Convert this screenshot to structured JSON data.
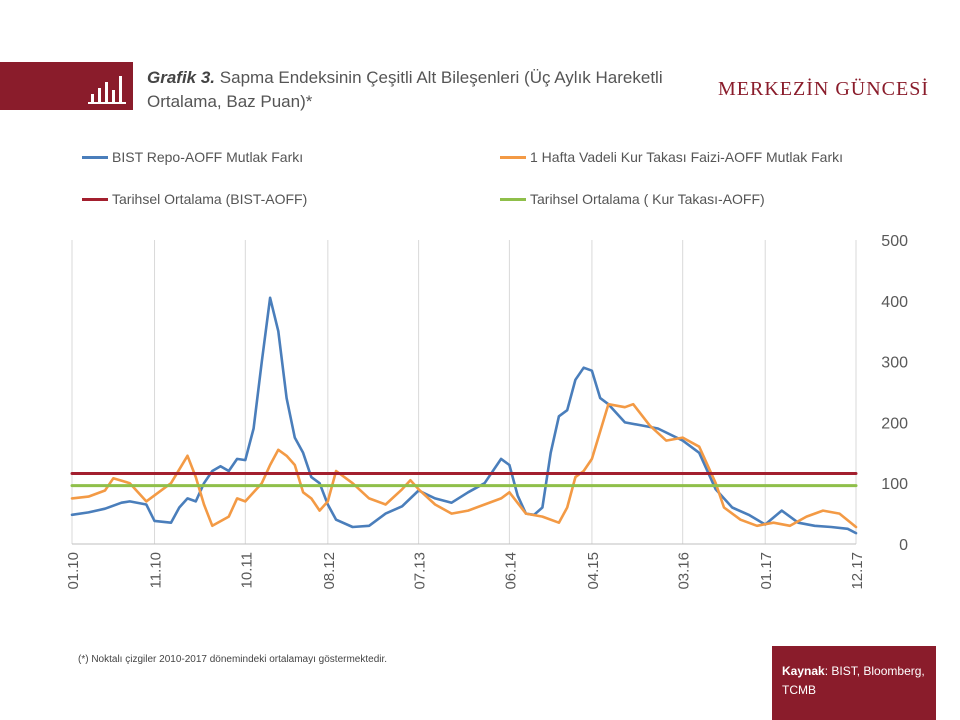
{
  "header": {
    "title_bold": "Grafik 3.",
    "title_text": "Sapma Endeksinin Çeşitli Alt Bileşenleri (Üç Aylık Hareketli Ortalama, Baz Puan)*",
    "brand": "MERKEZİN GÜNCESİ",
    "icon": "bar-chart-icon"
  },
  "footer": {
    "note": "(*) Noktalı çizgiler 2010-2017 dönemindeki ortalamayı göstermektedir.",
    "source_label": "Kaynak",
    "source_text": ": BIST, Bloomberg, TCMB"
  },
  "colors": {
    "brand": "#8a1c2b",
    "series1": "#4a7ebb",
    "series2": "#f39a45",
    "series3": "#a31f2e",
    "series4": "#8fbf4a"
  },
  "chart_data": {
    "type": "line",
    "title": "",
    "xlabel": "",
    "ylabel": "",
    "ylim": [
      0,
      500
    ],
    "yticks": [
      0,
      100,
      200,
      300,
      400,
      500
    ],
    "y_axis_side": "right",
    "xlim": [
      "2010-01",
      "2017-12"
    ],
    "xticks": [
      "01.10",
      "11.10",
      "10.11",
      "08.12",
      "07.13",
      "06.14",
      "04.15",
      "03.16",
      "01.17",
      "12.17"
    ],
    "xtick_dates": [
      "2010-01",
      "2010-11",
      "2011-10",
      "2012-08",
      "2013-07",
      "2014-06",
      "2015-04",
      "2016-03",
      "2017-01",
      "2017-12"
    ],
    "grid": "vertical",
    "legend_position": "top",
    "series": [
      {
        "name": "BIST Repo-AOFF Mutlak Farkı",
        "color": "#4a7ebb",
        "style": "line",
        "x": [
          "2010-01",
          "2010-03",
          "2010-05",
          "2010-07",
          "2010-08",
          "2010-10",
          "2010-11",
          "2011-01",
          "2011-02",
          "2011-03",
          "2011-04",
          "2011-05",
          "2011-06",
          "2011-07",
          "2011-08",
          "2011-09",
          "2011-10",
          "2011-11",
          "2011-12",
          "2012-01",
          "2012-02",
          "2012-03",
          "2012-04",
          "2012-05",
          "2012-06",
          "2012-07",
          "2012-08",
          "2012-09",
          "2012-11",
          "2013-01",
          "2013-03",
          "2013-05",
          "2013-07",
          "2013-09",
          "2013-11",
          "2014-01",
          "2014-03",
          "2014-05",
          "2014-06",
          "2014-07",
          "2014-08",
          "2014-09",
          "2014-10",
          "2014-11",
          "2014-12",
          "2015-01",
          "2015-02",
          "2015-03",
          "2015-04",
          "2015-05",
          "2015-06",
          "2015-08",
          "2015-10",
          "2015-12",
          "2016-03",
          "2016-05",
          "2016-07",
          "2016-09",
          "2016-11",
          "2017-01",
          "2017-03",
          "2017-05",
          "2017-07",
          "2017-09",
          "2017-11",
          "2017-12"
        ],
        "values": [
          48,
          52,
          58,
          68,
          70,
          65,
          38,
          35,
          60,
          75,
          70,
          100,
          120,
          128,
          120,
          140,
          138,
          190,
          300,
          405,
          350,
          240,
          175,
          150,
          110,
          100,
          65,
          40,
          28,
          30,
          50,
          62,
          88,
          75,
          68,
          85,
          100,
          140,
          130,
          80,
          50,
          48,
          60,
          150,
          210,
          220,
          270,
          290,
          285,
          240,
          230,
          200,
          195,
          190,
          170,
          150,
          90,
          60,
          48,
          32,
          55,
          35,
          30,
          28,
          25,
          18
        ]
      },
      {
        "name": "1 Hafta Vadeli Kur Takası Faizi-AOFF Mutlak Farkı",
        "color": "#f39a45",
        "style": "line",
        "x": [
          "2010-01",
          "2010-03",
          "2010-05",
          "2010-06",
          "2010-08",
          "2010-09",
          "2010-10",
          "2011-01",
          "2011-03",
          "2011-04",
          "2011-05",
          "2011-06",
          "2011-08",
          "2011-09",
          "2011-10",
          "2011-12",
          "2012-01",
          "2012-02",
          "2012-03",
          "2012-04",
          "2012-05",
          "2012-06",
          "2012-07",
          "2012-08",
          "2012-09",
          "2012-11",
          "2013-01",
          "2013-03",
          "2013-05",
          "2013-06",
          "2013-07",
          "2013-09",
          "2013-11",
          "2014-01",
          "2014-03",
          "2014-05",
          "2014-06",
          "2014-08",
          "2014-10",
          "2014-12",
          "2015-01",
          "2015-02",
          "2015-03",
          "2015-04",
          "2015-06",
          "2015-08",
          "2015-09",
          "2015-11",
          "2016-01",
          "2016-03",
          "2016-05",
          "2016-07",
          "2016-08",
          "2016-10",
          "2016-12",
          "2017-02",
          "2017-04",
          "2017-06",
          "2017-08",
          "2017-10",
          "2017-12"
        ],
        "values": [
          75,
          78,
          88,
          108,
          100,
          85,
          70,
          100,
          145,
          110,
          65,
          30,
          45,
          75,
          70,
          100,
          130,
          155,
          145,
          130,
          85,
          75,
          55,
          70,
          120,
          100,
          75,
          65,
          90,
          105,
          90,
          65,
          50,
          55,
          65,
          75,
          85,
          50,
          45,
          35,
          60,
          110,
          120,
          140,
          230,
          225,
          230,
          195,
          170,
          175,
          160,
          100,
          60,
          40,
          30,
          35,
          30,
          45,
          55,
          50,
          28
        ]
      },
      {
        "name": "Tarihsel Ortalama (BIST-AOFF)",
        "color": "#a31f2e",
        "style": "flat",
        "x": [
          "2010-01",
          "2017-12"
        ],
        "values": [
          116,
          116
        ]
      },
      {
        "name": "Tarihsel Ortalama ( Kur Takası-AOFF)",
        "color": "#8fbf4a",
        "style": "flat",
        "x": [
          "2010-01",
          "2017-12"
        ],
        "values": [
          96,
          96
        ]
      }
    ]
  }
}
